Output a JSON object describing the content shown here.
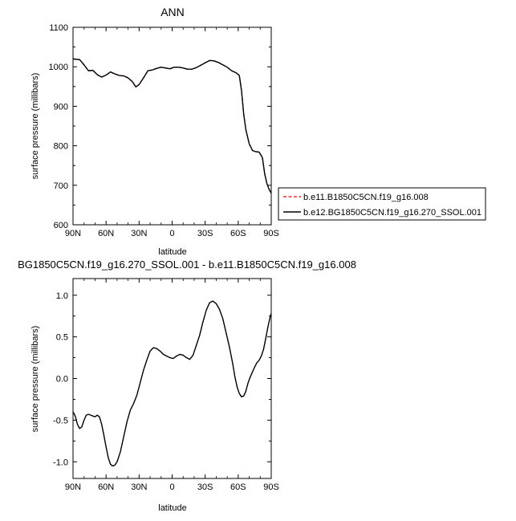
{
  "chart_data": [
    {
      "type": "line",
      "title": "ANN",
      "xlabel": "latitude",
      "ylabel": "surface pressure (millibars)",
      "xlim": [
        90,
        -90
      ],
      "ylim": [
        600,
        1100
      ],
      "x_ticks": [
        90,
        60,
        30,
        0,
        -30,
        -60,
        -90
      ],
      "x_tick_labels": [
        "90N",
        "60N",
        "30N",
        "0",
        "30S",
        "60S",
        "90S"
      ],
      "y_ticks": [
        600,
        700,
        800,
        900,
        1000,
        1100
      ],
      "y_tick_labels": [
        "600",
        "700",
        "800",
        "900",
        "1000",
        "1100"
      ],
      "legend_position": "right",
      "series": [
        {
          "name": "b.e11.B1850C5CN.f19_g16.008",
          "color": "#e0302a",
          "dash": "dashed",
          "x": [
            90,
            84,
            80,
            76,
            72,
            68,
            64,
            60,
            56,
            52,
            48,
            44,
            40,
            36,
            33,
            30,
            26,
            22,
            18,
            14,
            10,
            6,
            2,
            -2,
            -6,
            -10,
            -14,
            -18,
            -22,
            -26,
            -30,
            -34,
            -38,
            -42,
            -46,
            -50,
            -54,
            -58,
            -61,
            -63,
            -65,
            -67,
            -70,
            -73,
            -76,
            -79,
            -82,
            -84,
            -86,
            -88,
            -90
          ],
          "y": [
            1020,
            1018,
            1005,
            990,
            991,
            980,
            974,
            979,
            987,
            982,
            978,
            977,
            972,
            962,
            949,
            955,
            972,
            990,
            992,
            996,
            999,
            997,
            995,
            999,
            999,
            997,
            994,
            994,
            998,
            1004,
            1010,
            1016,
            1015,
            1011,
            1005,
            999,
            990,
            985,
            978,
            940,
            880,
            840,
            805,
            788,
            785,
            784,
            770,
            730,
            705,
            690,
            680
          ]
        },
        {
          "name": "b.e12.BG1850C5CN.f19_g16.270_SSOL.001",
          "color": "#000000",
          "dash": "solid",
          "x": [
            90,
            84,
            80,
            76,
            72,
            68,
            64,
            60,
            56,
            52,
            48,
            44,
            40,
            36,
            33,
            30,
            26,
            22,
            18,
            14,
            10,
            6,
            2,
            -2,
            -6,
            -10,
            -14,
            -18,
            -22,
            -26,
            -30,
            -34,
            -38,
            -42,
            -46,
            -50,
            -54,
            -58,
            -61,
            -63,
            -65,
            -67,
            -70,
            -73,
            -76,
            -79,
            -82,
            -84,
            -86,
            -88,
            -90
          ],
          "y": [
            1020,
            1018,
            1005,
            990,
            991,
            980,
            974,
            979,
            987,
            982,
            978,
            977,
            972,
            962,
            949,
            955,
            972,
            990,
            992,
            996,
            999,
            997,
            995,
            999,
            999,
            997,
            994,
            994,
            998,
            1004,
            1010,
            1016,
            1015,
            1011,
            1005,
            999,
            990,
            985,
            978,
            940,
            880,
            840,
            805,
            788,
            785,
            784,
            770,
            730,
            705,
            690,
            680
          ]
        }
      ]
    },
    {
      "type": "line",
      "title": "BG1850C5CN.f19_g16.270_SSOL.001 - b.e11.B1850C5CN.f19_g16.008",
      "xlabel": "latitude",
      "ylabel": "surface pressure (millibars)",
      "xlim": [
        90,
        -90
      ],
      "ylim": [
        -1.2,
        1.2
      ],
      "x_ticks": [
        90,
        60,
        30,
        0,
        -30,
        -60,
        -90
      ],
      "x_tick_labels": [
        "90N",
        "60N",
        "30N",
        "0",
        "30S",
        "60S",
        "90S"
      ],
      "y_ticks": [
        -1.0,
        -0.5,
        0.0,
        0.5,
        1.0
      ],
      "y_tick_labels": [
        "-1.0",
        "-0.5",
        "0.0",
        "0.5",
        "1.0"
      ],
      "series": [
        {
          "color": "#000000",
          "dash": "solid",
          "x": [
            90,
            88,
            86,
            84,
            82,
            80,
            78,
            76,
            74,
            72,
            70,
            68,
            66,
            64,
            62,
            60,
            58,
            56,
            54,
            52,
            50,
            47,
            44,
            41,
            38,
            35,
            32,
            29,
            26,
            23,
            20,
            17,
            14,
            11,
            8,
            5,
            2,
            -1,
            -4,
            -7,
            -10,
            -13,
            -16,
            -19,
            -22,
            -25,
            -28,
            -31,
            -34,
            -37,
            -40,
            -43,
            -46,
            -49,
            -52,
            -55,
            -57,
            -59,
            -61,
            -63,
            -65,
            -67,
            -69,
            -71,
            -73,
            -75,
            -77,
            -79,
            -81,
            -83,
            -85,
            -87,
            -89,
            -90
          ],
          "y": [
            -0.4,
            -0.45,
            -0.55,
            -0.6,
            -0.58,
            -0.5,
            -0.44,
            -0.43,
            -0.44,
            -0.45,
            -0.46,
            -0.44,
            -0.46,
            -0.55,
            -0.68,
            -0.82,
            -0.95,
            -1.03,
            -1.05,
            -1.04,
            -1.0,
            -0.88,
            -0.7,
            -0.52,
            -0.38,
            -0.3,
            -0.2,
            -0.05,
            0.1,
            0.22,
            0.33,
            0.37,
            0.36,
            0.33,
            0.29,
            0.27,
            0.25,
            0.24,
            0.27,
            0.29,
            0.28,
            0.25,
            0.23,
            0.28,
            0.4,
            0.52,
            0.68,
            0.82,
            0.91,
            0.93,
            0.9,
            0.83,
            0.72,
            0.55,
            0.38,
            0.18,
            0.02,
            -0.1,
            -0.18,
            -0.22,
            -0.21,
            -0.15,
            -0.05,
            0.02,
            0.08,
            0.14,
            0.19,
            0.22,
            0.27,
            0.35,
            0.48,
            0.62,
            0.74,
            0.78
          ]
        }
      ]
    }
  ]
}
